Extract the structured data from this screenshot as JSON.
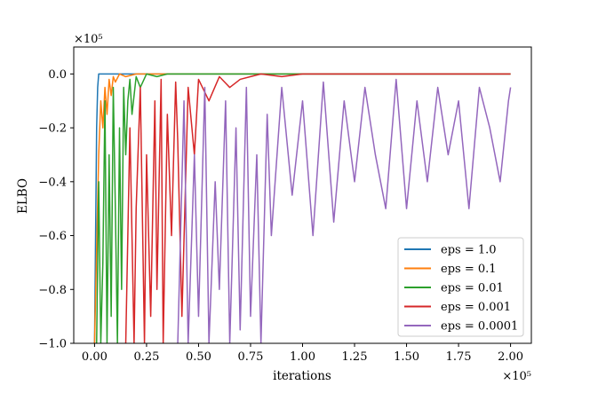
{
  "chart_data": {
    "type": "line",
    "title": "",
    "xlabel": "iterations",
    "ylabel": "ELBO",
    "x_multiplier_label": "×10⁵",
    "y_multiplier_label": "×10⁵",
    "xlim": [
      -0.1,
      2.1
    ],
    "ylim": [
      -1.0,
      0.1
    ],
    "xticks": [
      0.0,
      0.25,
      0.5,
      0.75,
      1.0,
      1.25,
      1.5,
      1.75,
      2.0
    ],
    "xtick_labels": [
      "0.00",
      "0.25",
      "0.50",
      "0.75",
      "1.00",
      "1.25",
      "1.50",
      "1.75",
      "2.00"
    ],
    "yticks": [
      -1.0,
      -0.8,
      -0.6,
      -0.4,
      -0.2,
      0.0
    ],
    "ytick_labels": [
      "−1.0",
      "−0.8",
      "−0.6",
      "−0.4",
      "−0.2",
      "0.0"
    ],
    "grid": false,
    "legend_position": "lower-right",
    "series": [
      {
        "name": "eps = 1.0",
        "color": "#1f77b4",
        "x": [
          0.0,
          0.005,
          0.01,
          0.015,
          0.02,
          0.03,
          0.05,
          0.1,
          0.5,
          1.0,
          1.5,
          2.0
        ],
        "y": [
          -1.0,
          -0.6,
          -0.2,
          -0.05,
          0.0,
          0.0,
          0.0,
          0.0,
          0.0,
          0.0,
          0.0,
          0.0
        ]
      },
      {
        "name": "eps = 0.1",
        "color": "#ff7f0e",
        "x": [
          0.0,
          0.02,
          0.03,
          0.04,
          0.05,
          0.06,
          0.07,
          0.08,
          0.09,
          0.1,
          0.12,
          0.15,
          0.2,
          0.5,
          1.0,
          1.5,
          2.0
        ],
        "y": [
          -1.0,
          -0.3,
          -0.1,
          -0.2,
          -0.05,
          -0.15,
          -0.02,
          -0.08,
          -0.01,
          -0.03,
          0.0,
          -0.01,
          0.0,
          0.0,
          0.0,
          0.0,
          0.0
        ]
      },
      {
        "name": "eps = 0.01",
        "color": "#2ca02c",
        "x": [
          0.01,
          0.02,
          0.03,
          0.04,
          0.05,
          0.06,
          0.07,
          0.08,
          0.09,
          0.1,
          0.11,
          0.12,
          0.13,
          0.14,
          0.15,
          0.16,
          0.17,
          0.18,
          0.2,
          0.22,
          0.25,
          0.3,
          0.35,
          0.4,
          0.5,
          1.0,
          1.5,
          2.0
        ],
        "y": [
          -1.0,
          -0.4,
          -1.0,
          -0.7,
          -0.1,
          -1.0,
          -0.3,
          -0.9,
          -0.05,
          -0.5,
          -1.0,
          -0.2,
          -0.8,
          -0.05,
          -0.3,
          -0.1,
          -0.02,
          -0.15,
          -0.01,
          -0.05,
          0.0,
          -0.01,
          0.0,
          0.0,
          0.0,
          0.0,
          0.0,
          0.0
        ]
      },
      {
        "name": "eps = 0.001",
        "color": "#d62728",
        "x": [
          0.15,
          0.17,
          0.19,
          0.2,
          0.22,
          0.24,
          0.25,
          0.27,
          0.29,
          0.3,
          0.32,
          0.33,
          0.35,
          0.37,
          0.39,
          0.4,
          0.42,
          0.45,
          0.48,
          0.5,
          0.55,
          0.6,
          0.65,
          0.7,
          0.75,
          0.8,
          0.9,
          1.0,
          1.2,
          1.5,
          1.8,
          2.0
        ],
        "y": [
          -1.0,
          -0.2,
          -1.0,
          -0.5,
          -0.05,
          -1.0,
          -0.3,
          -0.9,
          -0.1,
          -0.8,
          -0.02,
          -1.0,
          -0.15,
          -0.6,
          -0.03,
          -0.25,
          -0.9,
          -0.05,
          -0.3,
          -0.02,
          -0.1,
          -0.01,
          -0.05,
          -0.02,
          -0.01,
          0.0,
          -0.01,
          0.0,
          0.0,
          0.0,
          0.0,
          0.0
        ]
      },
      {
        "name": "eps = 0.0001",
        "color": "#9467bd",
        "x": [
          0.4,
          0.43,
          0.45,
          0.48,
          0.5,
          0.53,
          0.55,
          0.58,
          0.6,
          0.63,
          0.65,
          0.68,
          0.7,
          0.73,
          0.75,
          0.78,
          0.8,
          0.83,
          0.85,
          0.9,
          0.95,
          1.0,
          1.05,
          1.1,
          1.15,
          1.2,
          1.25,
          1.3,
          1.35,
          1.4,
          1.45,
          1.5,
          1.55,
          1.6,
          1.65,
          1.7,
          1.75,
          1.8,
          1.85,
          1.9,
          1.95,
          1.99,
          2.0
        ],
        "y": [
          -1.0,
          -0.1,
          -1.0,
          -0.3,
          -0.9,
          -0.05,
          -1.0,
          -0.4,
          -0.8,
          -0.1,
          -1.0,
          -0.2,
          -0.95,
          -0.05,
          -0.9,
          -0.3,
          -1.0,
          -0.15,
          -0.6,
          -0.05,
          -0.45,
          -0.1,
          -0.6,
          -0.03,
          -0.55,
          -0.1,
          -0.4,
          -0.05,
          -0.3,
          -0.5,
          -0.02,
          -0.5,
          -0.1,
          -0.4,
          -0.05,
          -0.3,
          -0.1,
          -0.5,
          -0.05,
          -0.2,
          -0.4,
          -0.1,
          -0.05
        ]
      }
    ]
  }
}
